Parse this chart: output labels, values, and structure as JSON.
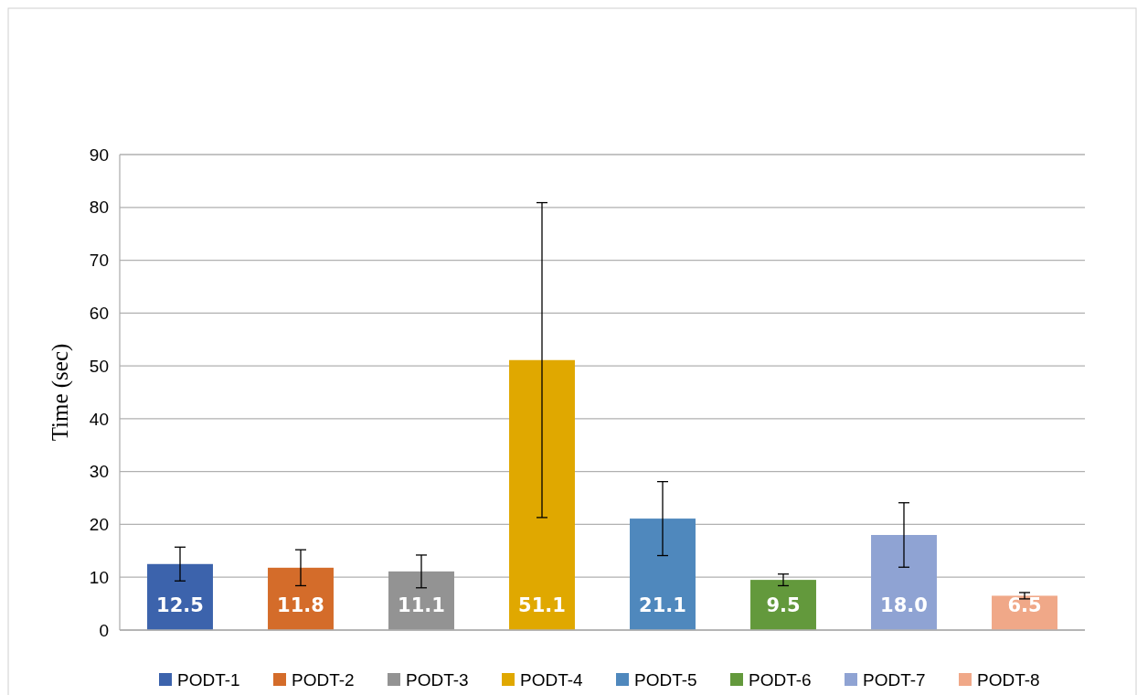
{
  "chart_data": {
    "type": "bar",
    "ylabel": "Time (sec)",
    "categories": [
      null,
      null,
      null,
      null,
      null,
      null,
      null,
      null
    ],
    "ylim": [
      0,
      90
    ],
    "yticks": [
      0,
      10,
      20,
      30,
      40,
      50,
      60,
      70,
      80,
      90
    ],
    "grid": "y",
    "legend": "bottom",
    "series": [
      {
        "name": "PODT-1",
        "color": "#3c63ac",
        "values": [
          12.5,
          null,
          null,
          null,
          null,
          null,
          null,
          null
        ],
        "errors": [
          3.2,
          null,
          null,
          null,
          null,
          null,
          null,
          null
        ],
        "value_labels": [
          "12.5",
          null,
          null,
          null,
          null,
          null,
          null,
          null
        ]
      },
      {
        "name": "PODT-2",
        "color": "#d46c2a",
        "values": [
          null,
          11.8,
          null,
          null,
          null,
          null,
          null,
          null
        ],
        "errors": [
          null,
          3.4,
          null,
          null,
          null,
          null,
          null,
          null
        ],
        "value_labels": [
          null,
          "11.8",
          null,
          null,
          null,
          null,
          null,
          null
        ]
      },
      {
        "name": "PODT-3",
        "color": "#939393",
        "values": [
          null,
          null,
          11.1,
          null,
          null,
          null,
          null,
          null
        ],
        "errors": [
          null,
          null,
          3.1,
          null,
          null,
          null,
          null,
          null
        ],
        "value_labels": [
          null,
          null,
          "11.1",
          null,
          null,
          null,
          null,
          null
        ]
      },
      {
        "name": "PODT-4",
        "color": "#e0a800",
        "values": [
          null,
          null,
          null,
          51.1,
          null,
          null,
          null,
          null
        ],
        "errors": [
          null,
          null,
          null,
          29.8,
          null,
          null,
          null,
          null
        ],
        "value_labels": [
          null,
          null,
          null,
          "51.1",
          null,
          null,
          null,
          null
        ]
      },
      {
        "name": "PODT-5",
        "color": "#4f88bd",
        "values": [
          null,
          null,
          null,
          null,
          21.1,
          null,
          null,
          null
        ],
        "errors": [
          null,
          null,
          null,
          null,
          7.0,
          null,
          null,
          null
        ],
        "value_labels": [
          null,
          null,
          null,
          null,
          "21.1",
          null,
          null,
          null
        ]
      },
      {
        "name": "PODT-6",
        "color": "#63993c",
        "values": [
          null,
          null,
          null,
          null,
          null,
          9.5,
          null,
          null
        ],
        "errors": [
          null,
          null,
          null,
          null,
          null,
          1.1,
          null,
          null
        ],
        "value_labels": [
          null,
          null,
          null,
          null,
          null,
          "9.5",
          null,
          null
        ]
      },
      {
        "name": "PODT-7",
        "color": "#8fa3d3",
        "values": [
          null,
          null,
          null,
          null,
          null,
          null,
          18.0,
          null
        ],
        "errors": [
          null,
          null,
          null,
          null,
          null,
          null,
          6.1,
          null
        ],
        "value_labels": [
          null,
          null,
          null,
          null,
          null,
          null,
          "18.0",
          null
        ]
      },
      {
        "name": "PODT-8",
        "color": "#f0a888",
        "values": [
          null,
          null,
          null,
          null,
          null,
          null,
          null,
          6.5
        ],
        "errors": [
          null,
          null,
          null,
          null,
          null,
          null,
          null,
          0.6
        ],
        "value_labels": [
          null,
          null,
          null,
          null,
          null,
          null,
          null,
          "6.5"
        ]
      }
    ]
  }
}
